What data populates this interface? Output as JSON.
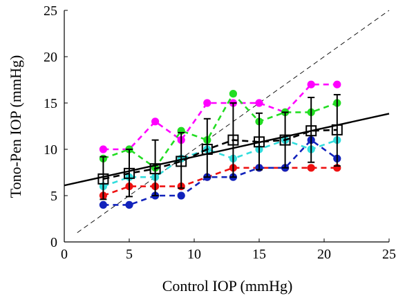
{
  "chart_data": {
    "type": "scatter",
    "title": "",
    "xlabel": "Control IOP (mmHg)",
    "ylabel": "Tono-Pen IOP (mmHg)",
    "xlim": [
      0,
      25
    ],
    "ylim": [
      0,
      25
    ],
    "xticks": [
      0,
      5,
      10,
      15,
      20,
      25
    ],
    "yticks": [
      0,
      5,
      10,
      15,
      20,
      25
    ],
    "grid": false,
    "x": [
      3,
      5,
      7,
      9,
      11,
      13,
      15,
      17,
      19,
      21
    ],
    "series": [
      {
        "color": "#ff00ff",
        "style": "dashed-dots",
        "values": [
          10,
          10,
          13,
          11,
          15,
          15,
          15,
          14,
          17,
          17
        ]
      },
      {
        "color": "#22dd22",
        "style": "dashed-dots",
        "values": [
          9,
          10,
          8,
          12,
          11,
          16,
          13,
          14,
          14,
          15
        ]
      },
      {
        "color": "#33dddd",
        "style": "dashed-dots",
        "values": [
          6,
          7,
          7,
          9,
          10,
          9,
          10,
          11,
          10,
          11
        ]
      },
      {
        "color": "#ee1111",
        "style": "dashed-dots",
        "values": [
          5,
          6,
          6,
          6,
          7,
          8,
          8,
          8,
          8,
          8
        ]
      },
      {
        "color": "#1122bb",
        "style": "dashed-dots",
        "values": [
          4,
          4,
          5,
          5,
          7,
          7,
          8,
          8,
          11,
          9
        ]
      },
      {
        "color": "#000000",
        "style": "mean-squares",
        "values": [
          6.8,
          7.4,
          7.9,
          8.7,
          10.0,
          11.0,
          10.8,
          11.0,
          12.0,
          12.1
        ],
        "error_low": [
          4.6,
          4.9,
          5.0,
          5.8,
          7.0,
          7.0,
          7.8,
          8.0,
          8.6,
          8.2
        ],
        "error_high": [
          9.2,
          10.0,
          11.0,
          11.8,
          13.3,
          15.0,
          13.9,
          14.0,
          15.6,
          15.9
        ]
      }
    ],
    "fit_line": {
      "color": "#000000",
      "intercept": 6.1,
      "slope": 0.31
    },
    "identity_line": {
      "color": "#000000",
      "style": "thin-dashed",
      "x_range": [
        1,
        25
      ]
    }
  }
}
